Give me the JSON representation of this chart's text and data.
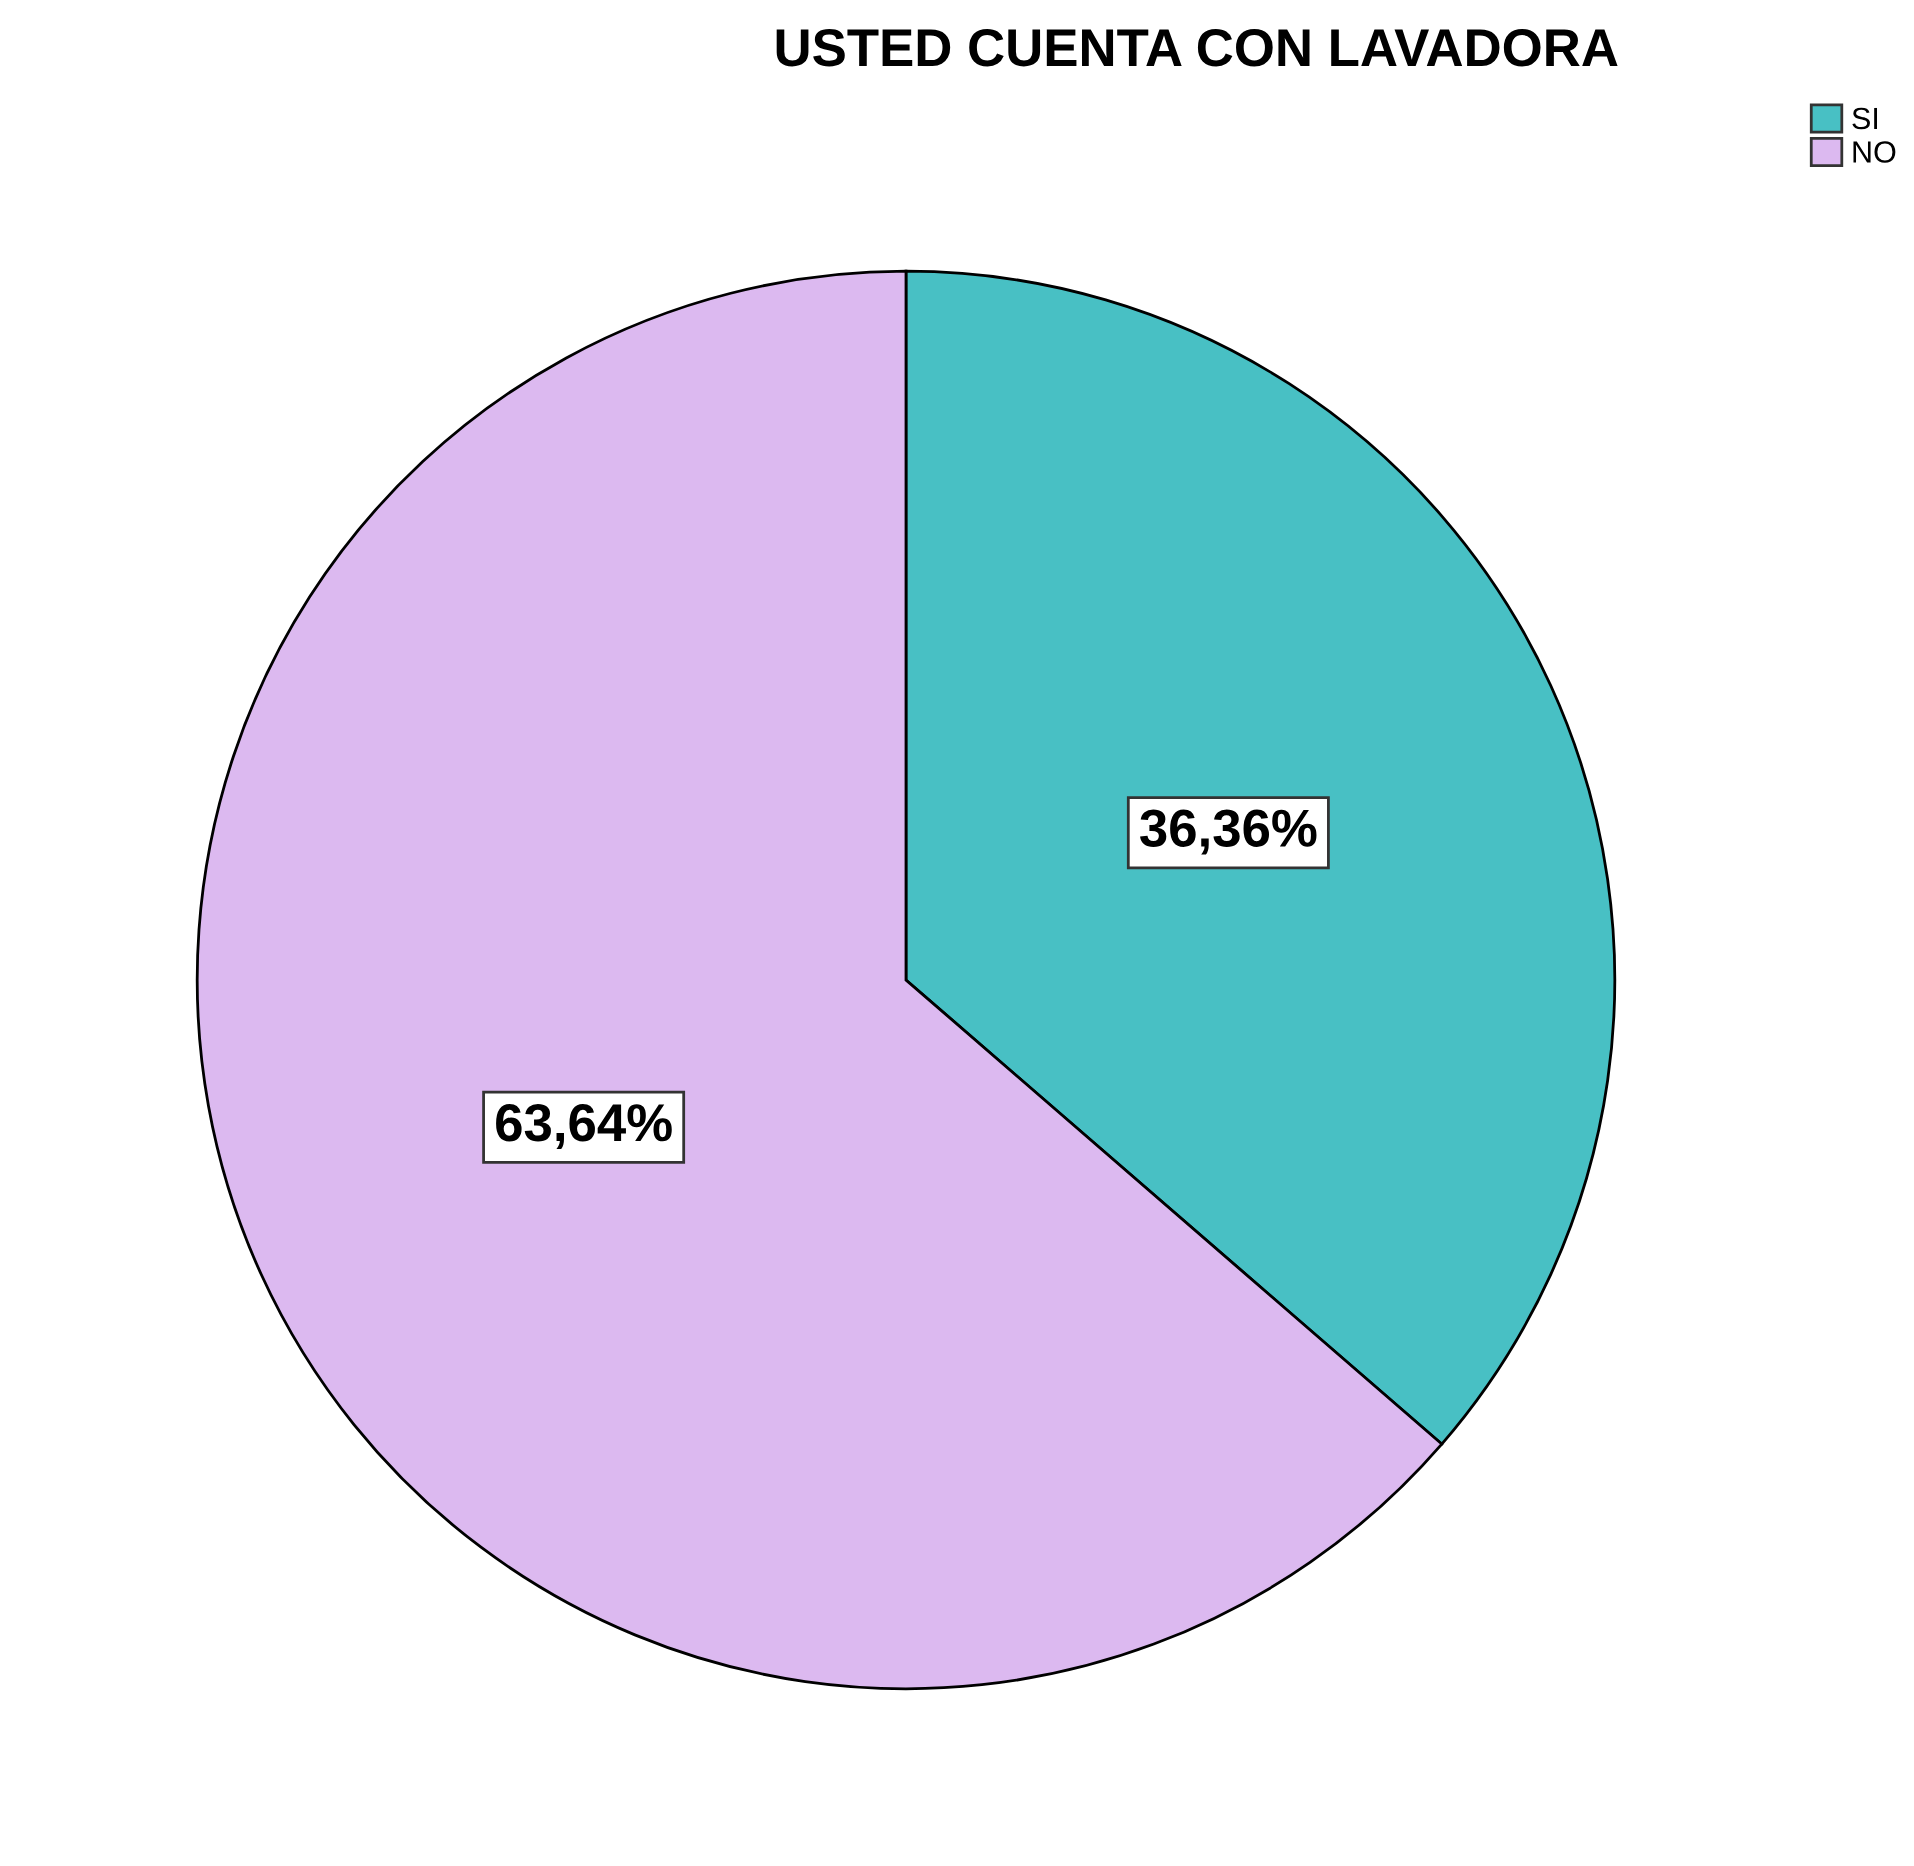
{
  "chart_data": {
    "type": "pie",
    "title": "USTED CUENTA CON LAVADORA",
    "categories": [
      "SI",
      "NO"
    ],
    "values": [
      36.36,
      63.64
    ],
    "value_labels": [
      "36,36%",
      "63,64%"
    ],
    "colors": [
      "#48c0c4",
      "#dcb9f0"
    ],
    "legend": "top right"
  }
}
